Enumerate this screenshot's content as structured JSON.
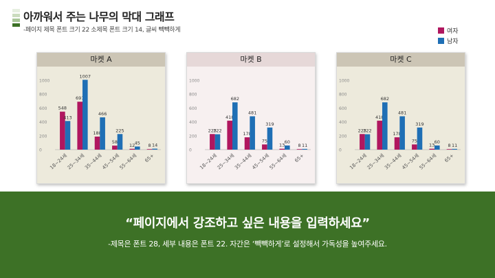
{
  "slide": {
    "title": "아까워서 주는 나무의 막대 그래프",
    "subtitle": "-페이지 제목 폰트 크기 22 소제목 폰트 크기 14, 글씨 빽빽하게",
    "mark_colors": [
      "#e6efe0",
      "#cbdcbf",
      "#a9c798",
      "#3d7126"
    ]
  },
  "legend": {
    "female_label": "여자",
    "male_label": "남자"
  },
  "colors": {
    "female": "#b0175f",
    "male": "#1f6fb5",
    "banner": "#3d7126"
  },
  "banner": {
    "quote": "“페이지에서 강조하고 싶은 내용을 입력하세요”",
    "note": "-제목은 폰트 28, 세부 내용은 폰트 22. 자간은 ‘빽빽하게’로 설정해서 가독성을 높여주세요."
  },
  "chart_data": [
    {
      "type": "bar",
      "title": "마켓 A",
      "categories": [
        "18~24세",
        "25~34세",
        "35~44세",
        "45~54세",
        "55~64세",
        "65+"
      ],
      "series": [
        {
          "name": "여자",
          "values": [
            548,
            691,
            188,
            58,
            12,
            8
          ]
        },
        {
          "name": "남자",
          "values": [
            413,
            1007,
            466,
            225,
            45,
            14
          ]
        }
      ],
      "ylim": [
        0,
        1000
      ],
      "yticks": [
        0,
        200,
        400,
        600,
        800,
        1000
      ],
      "header_color": "#ccc5b5",
      "plot_bg": "#edeadc",
      "grid": false
    },
    {
      "type": "bar",
      "title": "마켓 B",
      "categories": [
        "18~24세",
        "25~34세",
        "35~44세",
        "45~54세",
        "55~64세",
        "65+"
      ],
      "series": [
        {
          "name": "여자",
          "values": [
            225,
            418,
            178,
            75,
            13,
            8
          ]
        },
        {
          "name": "남자",
          "values": [
            222,
            682,
            481,
            319,
            60,
            11
          ]
        }
      ],
      "ylim": [
        0,
        1000
      ],
      "yticks": [
        0,
        200,
        400,
        600,
        800,
        1000
      ],
      "header_color": "#e6d8d8",
      "plot_bg": "#f7f0f0",
      "grid": false
    },
    {
      "type": "bar",
      "title": "마켓 C",
      "categories": [
        "18~24세",
        "25~34세",
        "35~44세",
        "45~54세",
        "55~64세",
        "65+"
      ],
      "series": [
        {
          "name": "여자",
          "values": [
            225,
            418,
            178,
            75,
            13,
            8
          ]
        },
        {
          "name": "남자",
          "values": [
            222,
            682,
            481,
            319,
            60,
            11
          ]
        }
      ],
      "ylim": [
        0,
        1000
      ],
      "yticks": [
        0,
        200,
        400,
        600,
        800,
        1000
      ],
      "header_color": "#ccc5b5",
      "plot_bg": "#edeadc",
      "grid": false
    }
  ]
}
